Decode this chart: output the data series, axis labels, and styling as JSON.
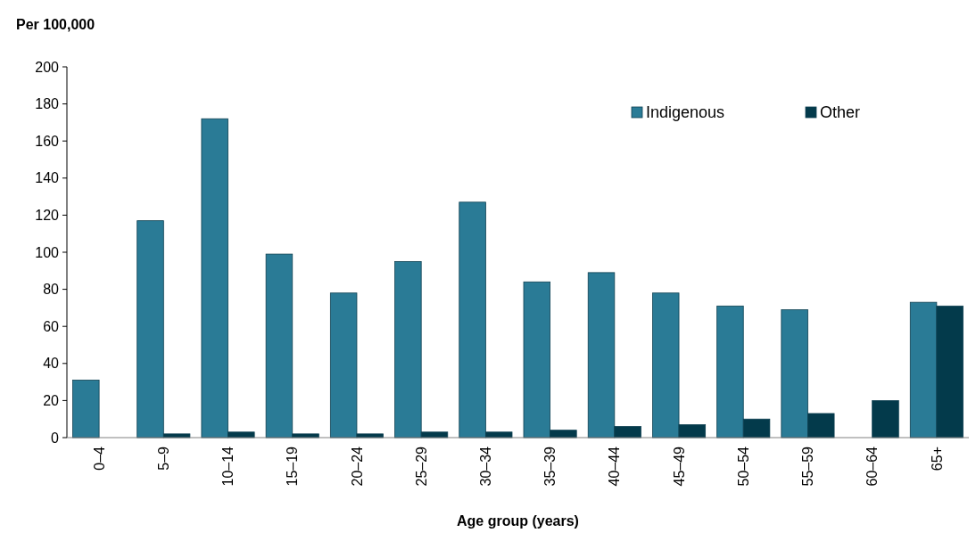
{
  "chart_data": {
    "type": "bar",
    "ylabel": "Per 100,000",
    "xlabel": "Age group (years)",
    "categories": [
      "0–4",
      "5–9",
      "10–14",
      "15–19",
      "20–24",
      "25–29",
      "30–34",
      "35–39",
      "40–44",
      "45–49",
      "50–54",
      "55–59",
      "60–64",
      "65+"
    ],
    "series": [
      {
        "name": "Indigenous",
        "color": "#2a7b96",
        "values": [
          31,
          117,
          172,
          99,
          78,
          95,
          127,
          84,
          89,
          78,
          71,
          69,
          null,
          73
        ]
      },
      {
        "name": "Other",
        "color": "#033a4b",
        "values": [
          null,
          2,
          3,
          2,
          2,
          3,
          3,
          4,
          6,
          7,
          10,
          13,
          20,
          71
        ]
      }
    ],
    "ylim": [
      0,
      200
    ],
    "yticks": [
      0,
      20,
      40,
      60,
      80,
      100,
      120,
      140,
      160,
      180,
      200
    ],
    "legend": "top right"
  }
}
